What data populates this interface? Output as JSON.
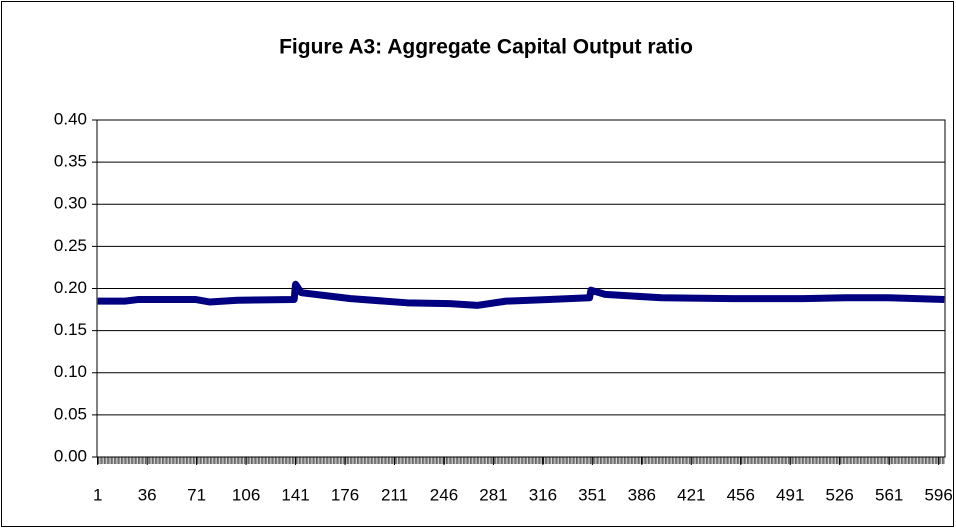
{
  "chart_data": {
    "type": "line",
    "title": "Figure A3: Aggregate Capital Output ratio",
    "series": [
      {
        "name": "Aggregate Capital Output ratio",
        "color": "#000080",
        "x": [
          1,
          20,
          30,
          70,
          80,
          100,
          140,
          141,
          145,
          180,
          220,
          250,
          270,
          290,
          320,
          349,
          350,
          360,
          400,
          450,
          500,
          530,
          560,
          600
        ],
        "values": [
          0.185,
          0.185,
          0.187,
          0.187,
          0.184,
          0.186,
          0.187,
          0.205,
          0.195,
          0.188,
          0.183,
          0.182,
          0.18,
          0.185,
          0.187,
          0.189,
          0.198,
          0.193,
          0.189,
          0.188,
          0.188,
          0.189,
          0.189,
          0.187
        ]
      }
    ],
    "xlim": [
      0.5,
      600.5
    ],
    "xticks": [
      1,
      36,
      71,
      106,
      141,
      176,
      211,
      246,
      281,
      316,
      351,
      386,
      421,
      456,
      491,
      526,
      561,
      596
    ],
    "ylim": [
      0,
      0.4
    ],
    "yticks": [
      {
        "value": 0,
        "label": "0.00"
      },
      {
        "value": 0.05,
        "label": "0.05"
      },
      {
        "value": 0.1,
        "label": "0.10"
      },
      {
        "value": 0.15,
        "label": "0.15"
      },
      {
        "value": 0.2,
        "label": "0.20"
      },
      {
        "value": 0.25,
        "label": "0.25"
      },
      {
        "value": 0.3,
        "label": "0.30"
      },
      {
        "value": 0.35,
        "label": "0.35"
      },
      {
        "value": 0.4,
        "label": "0.40"
      }
    ],
    "grid": true
  }
}
